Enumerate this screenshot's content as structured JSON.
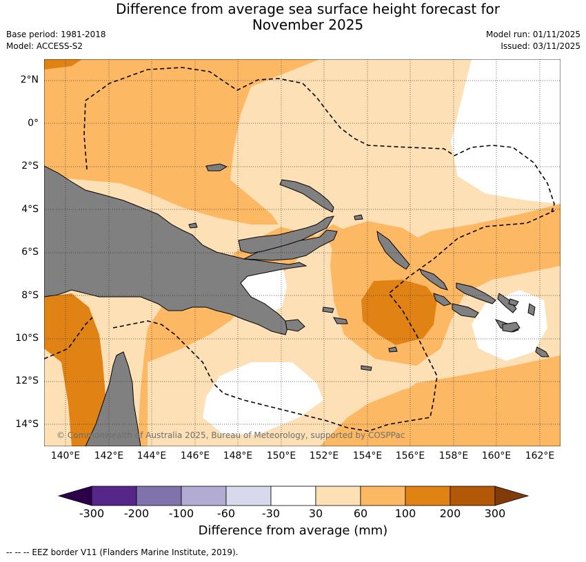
{
  "title_line1": "Difference from average sea surface height forecast for",
  "title_line2": "November 2025",
  "base_period": "Base period: 1981-2018",
  "model": "Model: ACCESS-S2",
  "model_run": "Model run: 01/11/2025",
  "issued": "Issued: 03/11/2025",
  "copyright": "© Commonwealth of Australia 2025, Bureau of Meteorology, supported by COSPPac",
  "lat_labels": [
    "2°N",
    "0°",
    "2°S",
    "4°S",
    "6°S",
    "8°S",
    "10°S",
    "12°S",
    "14°S"
  ],
  "lon_labels": [
    "140°E",
    "142°E",
    "144°E",
    "146°E",
    "148°E",
    "150°E",
    "152°E",
    "154°E",
    "156°E",
    "158°E",
    "160°E",
    "162°E"
  ],
  "colorbar": {
    "ticks": [
      "-300",
      "-200",
      "-100",
      "-60",
      "-30",
      "30",
      "60",
      "100",
      "200",
      "300"
    ],
    "title": "Difference from average (mm)",
    "colors": [
      "#2d004b",
      "#542788",
      "#8073ac",
      "#b2abd2",
      "#d8daeb",
      "#ffffff",
      "#fee0b6",
      "#fdb863",
      "#e08214",
      "#b35806",
      "#7f3b08"
    ]
  },
  "footnote": "--  --  -- EEZ border V11 (Flanders Marine Institute, 2019).",
  "colors": {
    "land": "#808080",
    "ocean_lowest": "#ffffff",
    "c30": "#fee0b6",
    "c60": "#fdb863",
    "c100": "#e08214",
    "c200": "#b35806"
  }
}
